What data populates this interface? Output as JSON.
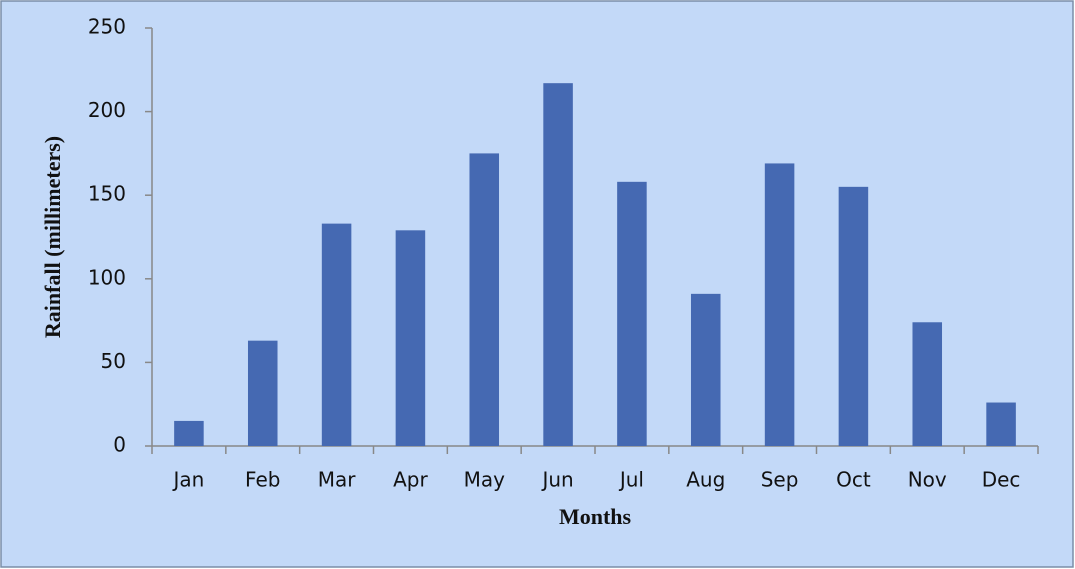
{
  "chart_data": {
    "type": "bar",
    "x_label": "Months",
    "y_label": "Rainfall (millimeters)",
    "categories": [
      "Jan",
      "Feb",
      "Mar",
      "Apr",
      "May",
      "Jun",
      "Jul",
      "Aug",
      "Sep",
      "Oct",
      "Nov",
      "Dec"
    ],
    "values": [
      15,
      63,
      133,
      129,
      175,
      217,
      158,
      91,
      169,
      155,
      74,
      26
    ],
    "color": "#4569b2",
    "ylim": [
      0,
      250
    ],
    "yticks": [
      0,
      50,
      100,
      150,
      200,
      250
    ],
    "grid": false
  }
}
